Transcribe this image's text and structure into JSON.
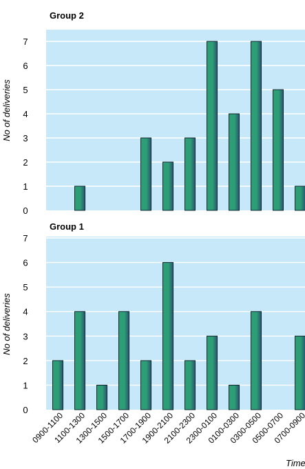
{
  "chart_data": [
    {
      "type": "bar",
      "title": "Group 2",
      "ylabel": "No of deliveries",
      "xlabel": "Time",
      "ylim": [
        0,
        7
      ],
      "yticks": [
        0,
        1,
        2,
        3,
        4,
        5,
        6,
        7
      ],
      "grid": true,
      "categories": [
        "0900-1100",
        "1100-1300",
        "1300-1500",
        "1500-1700",
        "1700-1900",
        "1900-2100",
        "2100-2300",
        "2300-0100",
        "0100-0300",
        "0300-0500",
        "0500-0700",
        "0700-0900"
      ],
      "values": [
        0,
        1,
        0,
        0,
        3,
        2,
        3,
        7,
        4,
        7,
        5,
        1
      ]
    },
    {
      "type": "bar",
      "title": "Group 1",
      "ylabel": "No of deliveries",
      "xlabel": "Time",
      "ylim": [
        0,
        7
      ],
      "yticks": [
        0,
        1,
        2,
        3,
        4,
        5,
        6,
        7
      ],
      "grid": true,
      "categories": [
        "0900-1100",
        "1100-1300",
        "1300-1500",
        "1500-1700",
        "1700-1900",
        "1900-2100",
        "2100-2300",
        "2300-0100",
        "0100-0300",
        "0300-0500",
        "0500-0700",
        "0700-0900"
      ],
      "values": [
        2,
        4,
        1,
        4,
        2,
        6,
        2,
        3,
        1,
        4,
        0,
        3
      ]
    }
  ],
  "colors": {
    "plot_background": "#c7e8f8",
    "gridline": "#ffffff",
    "bar_fill": "#2e9e77",
    "bar_shade": "#27556f",
    "bar_outline": "#0b2530"
  }
}
